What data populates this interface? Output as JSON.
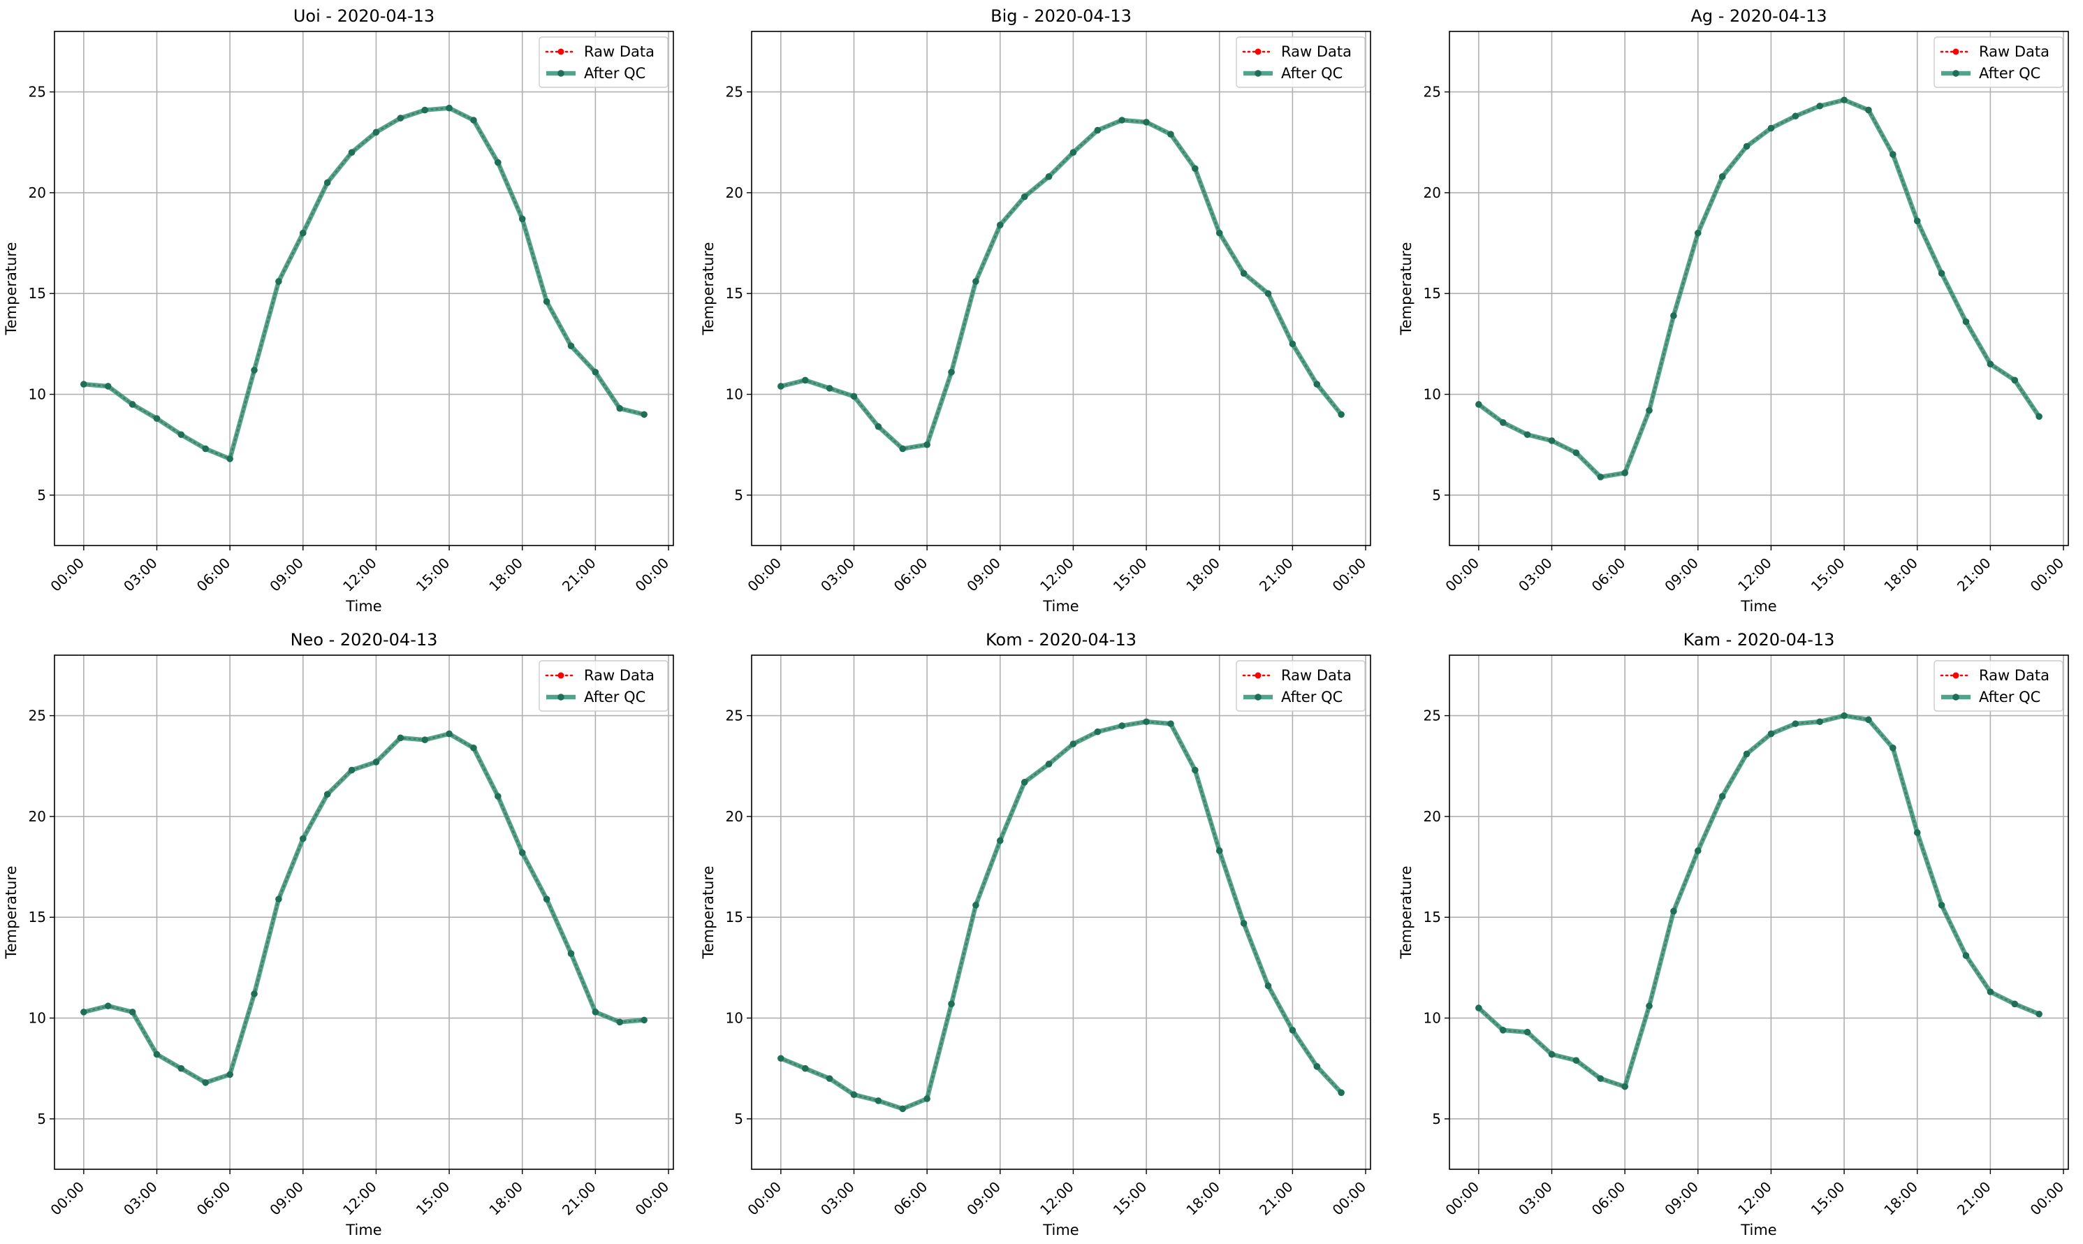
{
  "chart_data": [
    {
      "type": "line",
      "title": "Uoi - 2020-04-13",
      "xlabel": "Time",
      "ylabel": "Temperature",
      "x_ticks": [
        "00:00",
        "03:00",
        "06:00",
        "09:00",
        "12:00",
        "15:00",
        "18:00",
        "21:00",
        "00:00"
      ],
      "y_ticks": [
        5,
        10,
        15,
        20,
        25
      ],
      "xlim_hours": [
        -1.2,
        24.2
      ],
      "ylim": [
        2.5,
        28
      ],
      "x_hours": [
        0,
        1,
        2,
        3,
        4,
        5,
        6,
        7,
        8,
        9,
        10,
        11,
        12,
        13,
        14,
        15,
        16,
        17,
        18,
        19,
        20,
        21,
        22,
        23
      ],
      "grid": true,
      "legend_position": "top-right",
      "series": [
        {
          "name": "Raw Data",
          "color": "#ff0000",
          "values": [
            10.5,
            10.4,
            9.5,
            8.8,
            8.0,
            7.3,
            6.8,
            11.2,
            15.6,
            18.0,
            20.5,
            22.0,
            23.0,
            23.7,
            24.1,
            24.2,
            23.6,
            21.5,
            18.7,
            14.6,
            12.4,
            11.1,
            9.3,
            9.0
          ]
        },
        {
          "name": "After QC",
          "color": "#2a9073",
          "values": [
            10.5,
            10.4,
            9.5,
            8.8,
            8.0,
            7.3,
            6.8,
            11.2,
            15.6,
            18.0,
            20.5,
            22.0,
            23.0,
            23.7,
            24.1,
            24.2,
            23.6,
            21.5,
            18.7,
            14.6,
            12.4,
            11.1,
            9.3,
            9.0
          ]
        }
      ]
    },
    {
      "type": "line",
      "title": "Big - 2020-04-13",
      "xlabel": "Time",
      "ylabel": "Temperature",
      "x_ticks": [
        "00:00",
        "03:00",
        "06:00",
        "09:00",
        "12:00",
        "15:00",
        "18:00",
        "21:00",
        "00:00"
      ],
      "y_ticks": [
        5,
        10,
        15,
        20,
        25
      ],
      "xlim_hours": [
        -1.2,
        24.2
      ],
      "ylim": [
        2.5,
        28
      ],
      "x_hours": [
        0,
        1,
        2,
        3,
        4,
        5,
        6,
        7,
        8,
        9,
        10,
        11,
        12,
        13,
        14,
        15,
        16,
        17,
        18,
        19,
        20,
        21,
        22,
        23
      ],
      "grid": true,
      "legend_position": "top-right",
      "series": [
        {
          "name": "Raw Data",
          "color": "#ff0000",
          "values": [
            10.4,
            10.7,
            10.3,
            9.9,
            8.4,
            7.3,
            7.5,
            11.1,
            15.6,
            18.4,
            19.8,
            20.8,
            22.0,
            23.1,
            23.6,
            23.5,
            22.9,
            21.2,
            18.0,
            16.0,
            15.0,
            12.5,
            10.5,
            9.0
          ]
        },
        {
          "name": "After QC",
          "color": "#2a9073",
          "values": [
            10.4,
            10.7,
            10.3,
            9.9,
            8.4,
            7.3,
            7.5,
            11.1,
            15.6,
            18.4,
            19.8,
            20.8,
            22.0,
            23.1,
            23.6,
            23.5,
            22.9,
            21.2,
            18.0,
            16.0,
            15.0,
            12.5,
            10.5,
            9.0
          ]
        }
      ]
    },
    {
      "type": "line",
      "title": "Ag - 2020-04-13",
      "xlabel": "Time",
      "ylabel": "Temperature",
      "x_ticks": [
        "00:00",
        "03:00",
        "06:00",
        "09:00",
        "12:00",
        "15:00",
        "18:00",
        "21:00",
        "00:00"
      ],
      "y_ticks": [
        5,
        10,
        15,
        20,
        25
      ],
      "xlim_hours": [
        -1.2,
        24.2
      ],
      "ylim": [
        2.5,
        28
      ],
      "x_hours": [
        0,
        1,
        2,
        3,
        4,
        5,
        6,
        7,
        8,
        9,
        10,
        11,
        12,
        13,
        14,
        15,
        16,
        17,
        18,
        19,
        20,
        21,
        22,
        23
      ],
      "grid": true,
      "legend_position": "top-right",
      "series": [
        {
          "name": "Raw Data",
          "color": "#ff0000",
          "values": [
            9.5,
            8.6,
            8.0,
            7.7,
            7.1,
            5.9,
            6.1,
            9.2,
            13.9,
            18.0,
            20.8,
            22.3,
            23.2,
            23.8,
            24.3,
            24.6,
            24.1,
            21.9,
            18.6,
            16.0,
            13.6,
            11.5,
            10.7,
            8.9
          ]
        },
        {
          "name": "After QC",
          "color": "#2a9073",
          "values": [
            9.5,
            8.6,
            8.0,
            7.7,
            7.1,
            5.9,
            6.1,
            9.2,
            13.9,
            18.0,
            20.8,
            22.3,
            23.2,
            23.8,
            24.3,
            24.6,
            24.1,
            21.9,
            18.6,
            16.0,
            13.6,
            11.5,
            10.7,
            8.9
          ]
        }
      ]
    },
    {
      "type": "line",
      "title": "Neo - 2020-04-13",
      "xlabel": "Time",
      "ylabel": "Temperature",
      "x_ticks": [
        "00:00",
        "03:00",
        "06:00",
        "09:00",
        "12:00",
        "15:00",
        "18:00",
        "21:00",
        "00:00"
      ],
      "y_ticks": [
        5,
        10,
        15,
        20,
        25
      ],
      "xlim_hours": [
        -1.2,
        24.2
      ],
      "ylim": [
        2.5,
        28
      ],
      "x_hours": [
        0,
        1,
        2,
        3,
        4,
        5,
        6,
        7,
        8,
        9,
        10,
        11,
        12,
        13,
        14,
        15,
        16,
        17,
        18,
        19,
        20,
        21,
        22,
        23
      ],
      "grid": true,
      "legend_position": "top-right",
      "series": [
        {
          "name": "Raw Data",
          "color": "#ff0000",
          "values": [
            10.3,
            10.6,
            10.3,
            8.2,
            7.5,
            6.8,
            7.2,
            11.2,
            15.9,
            18.9,
            21.1,
            22.3,
            22.7,
            23.9,
            23.8,
            24.1,
            23.4,
            21.0,
            18.2,
            15.9,
            13.2,
            10.3,
            9.8,
            9.9
          ]
        },
        {
          "name": "After QC",
          "color": "#2a9073",
          "values": [
            10.3,
            10.6,
            10.3,
            8.2,
            7.5,
            6.8,
            7.2,
            11.2,
            15.9,
            18.9,
            21.1,
            22.3,
            22.7,
            23.9,
            23.8,
            24.1,
            23.4,
            21.0,
            18.2,
            15.9,
            13.2,
            10.3,
            9.8,
            9.9
          ]
        }
      ]
    },
    {
      "type": "line",
      "title": "Kom - 2020-04-13",
      "xlabel": "Time",
      "ylabel": "Temperature",
      "x_ticks": [
        "00:00",
        "03:00",
        "06:00",
        "09:00",
        "12:00",
        "15:00",
        "18:00",
        "21:00",
        "00:00"
      ],
      "y_ticks": [
        5,
        10,
        15,
        20,
        25
      ],
      "xlim_hours": [
        -1.2,
        24.2
      ],
      "ylim": [
        2.5,
        28
      ],
      "x_hours": [
        0,
        1,
        2,
        3,
        4,
        5,
        6,
        7,
        8,
        9,
        10,
        11,
        12,
        13,
        14,
        15,
        16,
        17,
        18,
        19,
        20,
        21,
        22,
        23
      ],
      "grid": true,
      "legend_position": "top-right",
      "series": [
        {
          "name": "Raw Data",
          "color": "#ff0000",
          "values": [
            8.0,
            7.5,
            7.0,
            6.2,
            5.9,
            5.5,
            6.0,
            10.7,
            15.6,
            18.8,
            21.7,
            22.6,
            23.6,
            24.2,
            24.5,
            24.7,
            24.6,
            22.3,
            18.3,
            14.7,
            11.6,
            9.4,
            7.6,
            6.3
          ]
        },
        {
          "name": "After QC",
          "color": "#2a9073",
          "values": [
            8.0,
            7.5,
            7.0,
            6.2,
            5.9,
            5.5,
            6.0,
            10.7,
            15.6,
            18.8,
            21.7,
            22.6,
            23.6,
            24.2,
            24.5,
            24.7,
            24.6,
            22.3,
            18.3,
            14.7,
            11.6,
            9.4,
            7.6,
            6.3
          ]
        }
      ]
    },
    {
      "type": "line",
      "title": "Kam - 2020-04-13",
      "xlabel": "Time",
      "ylabel": "Temperature",
      "x_ticks": [
        "00:00",
        "03:00",
        "06:00",
        "09:00",
        "12:00",
        "15:00",
        "18:00",
        "21:00",
        "00:00"
      ],
      "y_ticks": [
        5,
        10,
        15,
        20,
        25
      ],
      "xlim_hours": [
        -1.2,
        24.2
      ],
      "ylim": [
        2.5,
        28
      ],
      "x_hours": [
        0,
        1,
        2,
        3,
        4,
        5,
        6,
        7,
        8,
        9,
        10,
        11,
        12,
        13,
        14,
        15,
        16,
        17,
        18,
        19,
        20,
        21,
        22,
        23
      ],
      "grid": true,
      "legend_position": "top-right",
      "series": [
        {
          "name": "Raw Data",
          "color": "#ff0000",
          "values": [
            10.5,
            9.4,
            9.3,
            8.2,
            7.9,
            7.0,
            6.6,
            10.6,
            15.3,
            18.3,
            21.0,
            23.1,
            24.1,
            24.6,
            24.7,
            25.0,
            24.8,
            23.4,
            19.2,
            15.6,
            13.1,
            11.3,
            10.7,
            10.2
          ]
        },
        {
          "name": "After QC",
          "color": "#2a9073",
          "values": [
            10.5,
            9.4,
            9.3,
            8.2,
            7.9,
            7.0,
            6.6,
            10.6,
            15.3,
            18.3,
            21.0,
            23.1,
            24.1,
            24.6,
            24.7,
            25.0,
            24.8,
            23.4,
            19.2,
            15.6,
            13.1,
            11.3,
            10.7,
            10.2
          ]
        }
      ]
    }
  ]
}
